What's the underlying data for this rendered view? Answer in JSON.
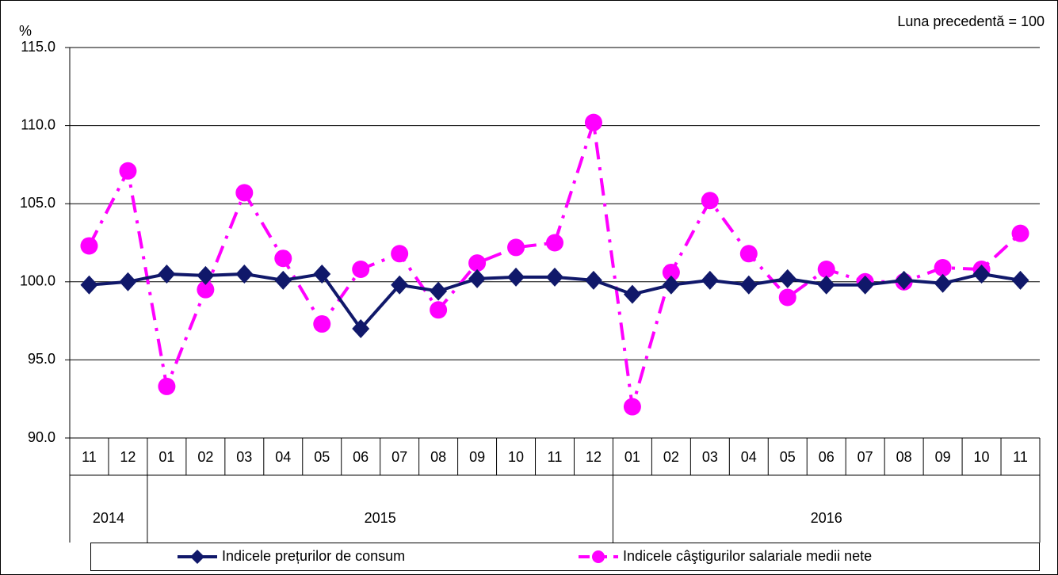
{
  "chart_data": {
    "type": "line",
    "y_unit_label": "%",
    "annotation": "Luna precedentă = 100",
    "categories": [
      "11",
      "12",
      "01",
      "02",
      "03",
      "04",
      "05",
      "06",
      "07",
      "08",
      "09",
      "10",
      "11",
      "12",
      "01",
      "02",
      "03",
      "04",
      "05",
      "06",
      "07",
      "08",
      "09",
      "10",
      "11"
    ],
    "x_groups": [
      {
        "label": "2014",
        "count": 2
      },
      {
        "label": "2015",
        "count": 12
      },
      {
        "label": "2016",
        "count": 11
      }
    ],
    "series": [
      {
        "name": "Indicele prețurilor de consum",
        "color": "#10186a",
        "marker": "diamond",
        "line_style": "solid",
        "values": [
          99.8,
          100.0,
          100.5,
          100.4,
          100.5,
          100.1,
          100.5,
          97.0,
          99.8,
          99.4,
          100.2,
          100.3,
          100.3,
          100.1,
          99.2,
          99.8,
          100.1,
          99.8,
          100.2,
          99.8,
          99.8,
          100.1,
          99.9,
          100.5,
          100.1
        ]
      },
      {
        "name": "Indicele câştigurilor salariale medii nete",
        "color": "#ff00ff",
        "marker": "circle",
        "line_style": "dashed",
        "values": [
          102.3,
          107.1,
          93.3,
          99.5,
          105.7,
          101.5,
          97.3,
          100.8,
          101.8,
          98.2,
          101.2,
          102.2,
          102.5,
          110.2,
          92.0,
          100.6,
          105.2,
          101.8,
          99.0,
          100.8,
          100.0,
          100.0,
          100.9,
          100.8,
          103.1
        ]
      }
    ],
    "ylim": [
      90,
      115
    ],
    "yticks": [
      {
        "value": 90,
        "label": "90.0"
      },
      {
        "value": 95,
        "label": "95.0"
      },
      {
        "value": 100,
        "label": "100.0"
      },
      {
        "value": 105,
        "label": "105.0"
      },
      {
        "value": 110,
        "label": "110.0"
      },
      {
        "value": 115,
        "label": "115.0"
      }
    ],
    "grid": true,
    "legend": "bottom"
  }
}
